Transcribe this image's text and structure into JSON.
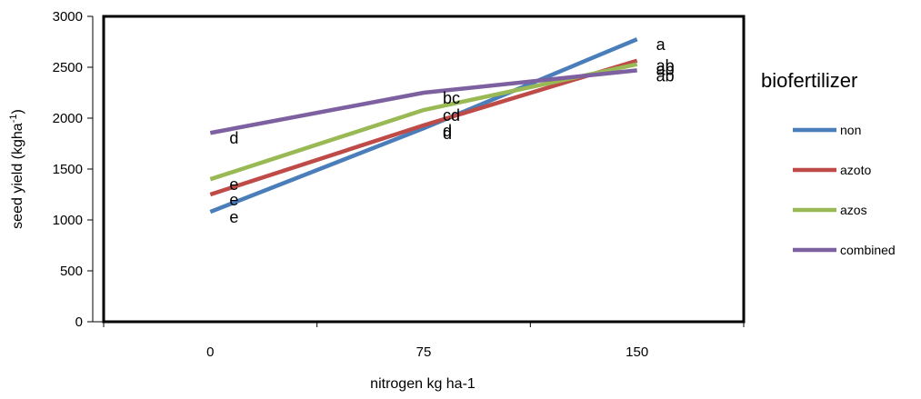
{
  "chart_data": {
    "type": "line",
    "categories": [
      "0",
      "75",
      "150"
    ],
    "xlabel": "nitrogen kg ha-1",
    "ylabel": {
      "main": "seed yield (kgha",
      "sup": "-1",
      "close": ")"
    },
    "ylim": [
      0,
      3000
    ],
    "yticks": [
      0,
      500,
      1000,
      1500,
      2000,
      2500,
      3000
    ],
    "legend_title": "biofertilizer",
    "legend_position": "right",
    "grid": false,
    "series": [
      {
        "name": "non",
        "color": "#4a7ebb",
        "values": [
          1080,
          1900,
          2775
        ],
        "labels": [
          "e",
          "d",
          "a"
        ]
      },
      {
        "name": "azoto",
        "color": "#be4b48",
        "values": [
          1250,
          1930,
          2565
        ],
        "labels": [
          "e",
          "d",
          "ab"
        ]
      },
      {
        "name": "azos",
        "color": "#98b954",
        "values": [
          1400,
          2080,
          2530
        ],
        "labels": [
          "e",
          "cd",
          "ab"
        ]
      },
      {
        "name": "combined",
        "color": "#7d60a0",
        "values": [
          1855,
          2250,
          2470
        ],
        "labels": [
          "d",
          "bc",
          "ab"
        ]
      }
    ]
  }
}
